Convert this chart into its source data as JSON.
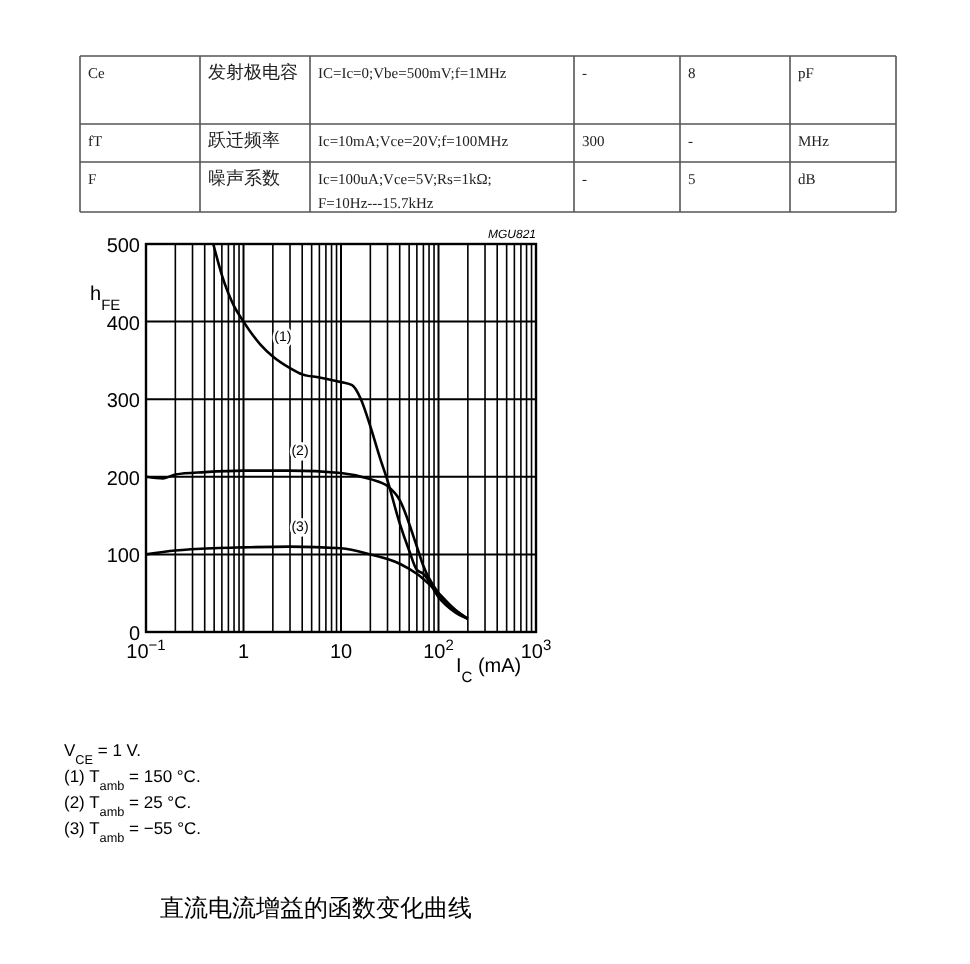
{
  "chart_data": [
    {
      "type": "other",
      "annotations": [
        "Ce",
        "发射极电容",
        "IC=Ic=0;Vbe=500mV;f=1MHz",
        "-",
        "8",
        "pF",
        "fT",
        "跃迁频率",
        "Ic=10mA;Vce=20V;f=100MHz",
        "300",
        "-",
        "MHz",
        "F",
        "噪声系数",
        "Ic=100uA;Vce=5V;Rs=1kΩ;F=10Hz---15.7kHz",
        "-",
        "5",
        "dB"
      ]
    },
    {
      "type": "line",
      "title": "直流电流增益的函数变化曲线",
      "xlabel": "I$_{C}$ (mA)",
      "ylabel": "h$_{FE}$",
      "log": "x",
      "grid": true,
      "marker": "none",
      "line_style": "solid",
      "xlim": [
        0.1,
        1000
      ],
      "ylim": [
        0,
        500
      ],
      "xticks": [
        {
          "value": 0.1,
          "label": "10$^{−1}$"
        },
        {
          "value": 0.2,
          "label": null
        },
        {
          "value": 0.3,
          "label": null
        },
        {
          "value": 0.4,
          "label": null
        },
        {
          "value": 0.5,
          "label": null
        },
        {
          "value": 0.6,
          "label": null
        },
        {
          "value": 0.7,
          "label": null
        },
        {
          "value": 0.8,
          "label": null
        },
        {
          "value": 0.9,
          "label": null
        },
        1,
        {
          "value": 2,
          "label": null
        },
        {
          "value": 3,
          "label": null
        },
        {
          "value": 4,
          "label": null
        },
        {
          "value": 5,
          "label": null
        },
        {
          "value": 6,
          "label": null
        },
        {
          "value": 7,
          "label": null
        },
        {
          "value": 8,
          "label": null
        },
        {
          "value": 9,
          "label": null
        },
        10,
        {
          "value": 20,
          "label": null
        },
        {
          "value": 30,
          "label": null
        },
        {
          "value": 40,
          "label": null
        },
        {
          "value": 50,
          "label": null
        },
        {
          "value": 60,
          "label": null
        },
        {
          "value": 70,
          "label": null
        },
        {
          "value": 80,
          "label": null
        },
        {
          "value": 90,
          "label": null
        },
        {
          "value": 100,
          "label": "10$^{2}$"
        },
        {
          "value": 200,
          "label": null
        },
        {
          "value": 300,
          "label": null
        },
        {
          "value": 400,
          "label": null
        },
        {
          "value": 500,
          "label": null
        },
        {
          "value": 600,
          "label": null
        },
        {
          "value": 700,
          "label": null
        },
        {
          "value": 800,
          "label": null
        },
        {
          "value": 900,
          "label": null
        },
        {
          "value": 1000,
          "label": "10$^{3}$"
        }
      ],
      "yticks": [
        0,
        100,
        200,
        300,
        400,
        500
      ],
      "series": [
        {
          "name": "(1)",
          "color": "#000000",
          "x": [
            0.49,
            0.6,
            0.8,
            1,
            1.5,
            2,
            3,
            4,
            6,
            10,
            13,
            16,
            20,
            25,
            30,
            40,
            50,
            60,
            70,
            100,
            150,
            200
          ],
          "values": [
            500,
            460,
            420,
            400,
            370,
            355,
            340,
            332,
            328,
            322,
            318,
            300,
            265,
            225,
            195,
            140,
            105,
            80,
            75,
            45,
            25,
            17
          ]
        },
        {
          "name": "(2)",
          "color": "#000000",
          "x": [
            0.1,
            0.15,
            0.2,
            0.4,
            1,
            3,
            10,
            20,
            30,
            40,
            60,
            70,
            100,
            150,
            200
          ],
          "values": [
            200,
            198,
            203,
            206,
            208,
            208,
            205,
            197,
            188,
            170,
            110,
            85,
            50,
            28,
            17
          ]
        },
        {
          "name": "(3)",
          "color": "#000000",
          "x": [
            0.1,
            0.2,
            0.5,
            1,
            3,
            10,
            20,
            40,
            60,
            100,
            150,
            200
          ],
          "values": [
            100,
            105,
            108,
            109,
            110,
            108,
            100,
            88,
            75,
            50,
            28,
            17
          ]
        }
      ],
      "annotations": [
        "MGU821",
        "V$_{CE}$ = 1 V.",
        "(1)  T$_{amb}$ = 150 °C.",
        "(2)  T$_{amb}$ = 25 °C.",
        "(3)  T$_{amb}$ = −55 °C."
      ]
    }
  ]
}
